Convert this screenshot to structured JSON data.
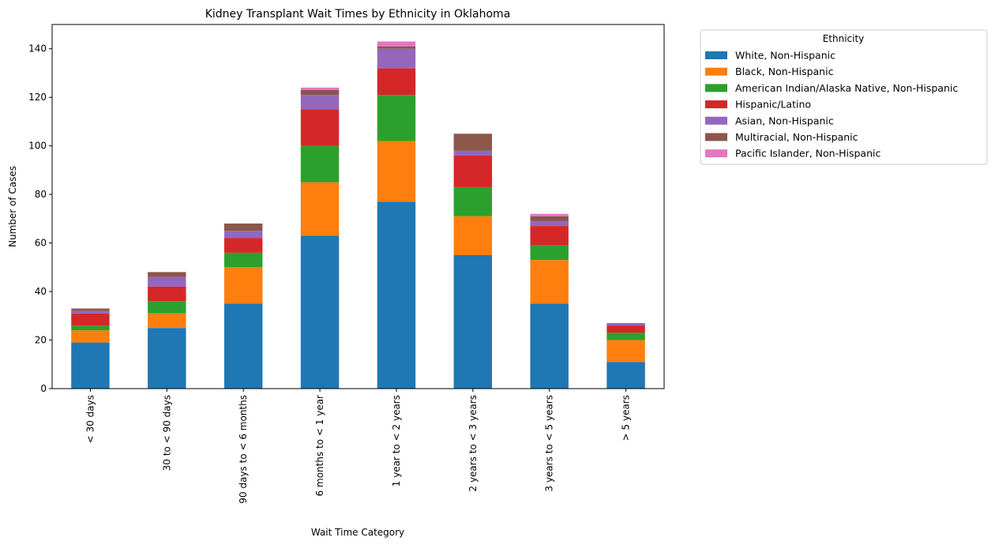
{
  "chart_data": {
    "type": "bar",
    "stacked": true,
    "title": "Kidney Transplant Wait Times by Ethnicity in Oklahoma",
    "xlabel": "Wait Time Category",
    "ylabel": "Number of Cases",
    "ylim": [
      0,
      150
    ],
    "yticks": [
      0,
      20,
      40,
      60,
      80,
      100,
      120,
      140
    ],
    "grid": false,
    "legend_title": "Ethnicity",
    "legend_placement": "outside-top-right",
    "categories": [
      "< 30 days",
      "30 to < 90 days",
      "90 days to < 6 months",
      "6 months to < 1 year",
      "1 year to < 2 years",
      "2 years to < 3 years",
      "3 years to < 5 years",
      "> 5 years"
    ],
    "series": [
      {
        "name": "White, Non-Hispanic",
        "color": "#1f77b4",
        "values": [
          19,
          25,
          35,
          63,
          77,
          55,
          35,
          11
        ]
      },
      {
        "name": "Black, Non-Hispanic",
        "color": "#ff7f0e",
        "values": [
          5,
          6,
          15,
          22,
          25,
          16,
          18,
          9
        ]
      },
      {
        "name": "American Indian/Alaska Native, Non-Hispanic",
        "color": "#2ca02c",
        "values": [
          2,
          5,
          6,
          15,
          19,
          12,
          6,
          3
        ]
      },
      {
        "name": "Hispanic/Latino",
        "color": "#d62728",
        "values": [
          5,
          6,
          6,
          15,
          11,
          13,
          8,
          3
        ]
      },
      {
        "name": "Asian, Non-Hispanic",
        "color": "#9467bd",
        "values": [
          1,
          4,
          3,
          6,
          8,
          2,
          2,
          1
        ]
      },
      {
        "name": "Multiracial, Non-Hispanic",
        "color": "#8c564b",
        "values": [
          1,
          2,
          3,
          2,
          1,
          7,
          2,
          0
        ]
      },
      {
        "name": "Pacific Islander, Non-Hispanic",
        "color": "#e377c2",
        "values": [
          0,
          0,
          0,
          1,
          2,
          0,
          1,
          0
        ]
      }
    ]
  }
}
